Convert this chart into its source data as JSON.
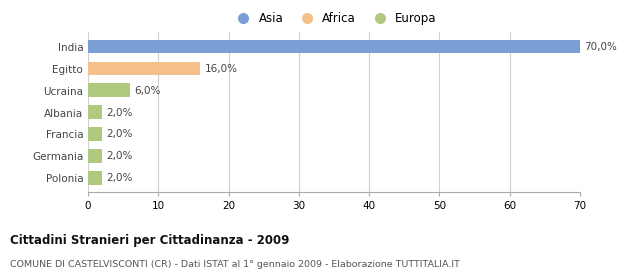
{
  "categories": [
    "India",
    "Egitto",
    "Ucraina",
    "Albania",
    "Francia",
    "Germania",
    "Polonia"
  ],
  "values": [
    70.0,
    16.0,
    6.0,
    2.0,
    2.0,
    2.0,
    2.0
  ],
  "labels": [
    "70,0%",
    "16,0%",
    "6,0%",
    "2,0%",
    "2,0%",
    "2,0%",
    "2,0%"
  ],
  "colors": [
    "#7b9fd4",
    "#f5c08a",
    "#afc97e",
    "#afc97e",
    "#afc97e",
    "#afc97e",
    "#afc97e"
  ],
  "legend": [
    {
      "label": "Asia",
      "color": "#7b9fd4"
    },
    {
      "label": "Africa",
      "color": "#f5c08a"
    },
    {
      "label": "Europa",
      "color": "#afc97e"
    }
  ],
  "xlim": [
    0,
    70
  ],
  "xticks": [
    0,
    10,
    20,
    30,
    40,
    50,
    60,
    70
  ],
  "title": "Cittadini Stranieri per Cittadinanza - 2009",
  "subtitle": "COMUNE DI CASTELVISCONTI (CR) - Dati ISTAT al 1° gennaio 2009 - Elaborazione TUTTITALIA.IT",
  "background_color": "#ffffff",
  "grid_color": "#d0d0d0",
  "bar_height": 0.62
}
